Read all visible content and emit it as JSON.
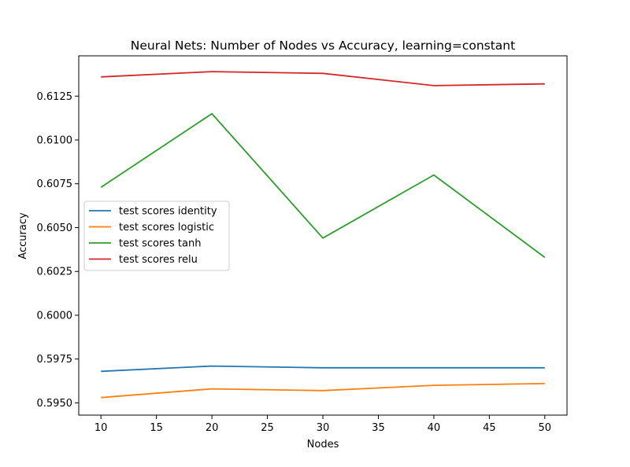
{
  "chart_data": {
    "type": "line",
    "title": "Neural Nets: Number of Nodes vs Accuracy, learning=constant",
    "xlabel": "Nodes",
    "ylabel": "Accuracy",
    "x": [
      10,
      20,
      30,
      40,
      50
    ],
    "xlim": [
      8,
      52
    ],
    "ylim": [
      0.5943,
      0.6148
    ],
    "xticks": [
      10,
      15,
      20,
      25,
      30,
      35,
      40,
      45,
      50
    ],
    "xtick_labels": [
      "10",
      "15",
      "20",
      "25",
      "30",
      "35",
      "40",
      "45",
      "50"
    ],
    "yticks": [
      0.595,
      0.5975,
      0.6,
      0.6025,
      0.605,
      0.6075,
      0.61,
      0.6125
    ],
    "ytick_labels": [
      "0.5950",
      "0.5975",
      "0.6000",
      "0.6025",
      "0.6050",
      "0.6075",
      "0.6100",
      "0.6125"
    ],
    "grid": false,
    "legend_position": "center-left",
    "series": [
      {
        "name": "test scores identity",
        "color": "#1f77b4",
        "values": [
          0.5968,
          0.5971,
          0.597,
          0.597,
          0.597
        ]
      },
      {
        "name": "test scores logistic",
        "color": "#ff7f0e",
        "values": [
          0.5953,
          0.5958,
          0.5957,
          0.596,
          0.5961
        ]
      },
      {
        "name": "test scores tanh",
        "color": "#2ca02c",
        "values": [
          0.6073,
          0.6115,
          0.6044,
          0.608,
          0.6033
        ]
      },
      {
        "name": "test scores relu",
        "color": "#d62728",
        "values": [
          0.6136,
          0.6139,
          0.6138,
          0.6131,
          0.6132
        ]
      }
    ]
  }
}
